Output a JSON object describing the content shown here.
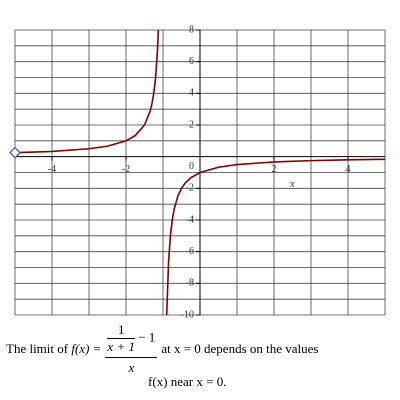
{
  "chart_data": {
    "type": "line",
    "x_label": "x",
    "xlim": [
      -5,
      5
    ],
    "ylim": [
      -10,
      8
    ],
    "xticks": [
      -4,
      -2,
      2,
      4
    ],
    "yticks": [
      -10,
      -8,
      -6,
      -4,
      -2,
      2,
      4,
      6,
      8
    ],
    "origin_label": "0",
    "xgrid": [
      -5,
      -4,
      -3,
      -2,
      -1,
      1,
      2,
      3,
      4,
      5
    ],
    "ygrid": [
      -10,
      -9,
      -8,
      -7,
      -6,
      -5,
      -4,
      -3,
      -2,
      -1,
      1,
      2,
      3,
      4,
      5,
      6,
      7,
      8
    ],
    "grid": true,
    "series": [
      {
        "color": "#800000",
        "x": [
          -5,
          -4,
          -3,
          -2.5,
          -2,
          -1.75,
          -1.5,
          -1.35,
          -1.3,
          -1.25,
          -1.2,
          -1.15,
          -1.125,
          -1,
          -0.9,
          -0.85,
          -0.8,
          -0.75,
          -0.7,
          -0.6,
          -0.5,
          -0.4,
          -0.25,
          0,
          0.5,
          1,
          2,
          3,
          4,
          5
        ],
        "values": [
          0.25,
          0.333,
          0.5,
          0.667,
          1,
          1.333,
          2,
          2.857,
          3.333,
          4,
          5,
          6.667,
          8,
          null,
          -10,
          -6.667,
          -5,
          -4,
          -3.333,
          -2.5,
          -2,
          -1.667,
          -1.333,
          -1,
          -0.667,
          -0.5,
          -0.333,
          -0.25,
          -0.2,
          -0.167
        ]
      }
    ]
  },
  "caption": {
    "lead": "The limit of",
    "fx": "f(x) =",
    "num_top": "1",
    "num_bottom": "x + 1",
    "num_rest": "− 1",
    "den": "x",
    "mid": "at x = 0 depends on the values",
    "tail": "f(x) near x = 0."
  }
}
